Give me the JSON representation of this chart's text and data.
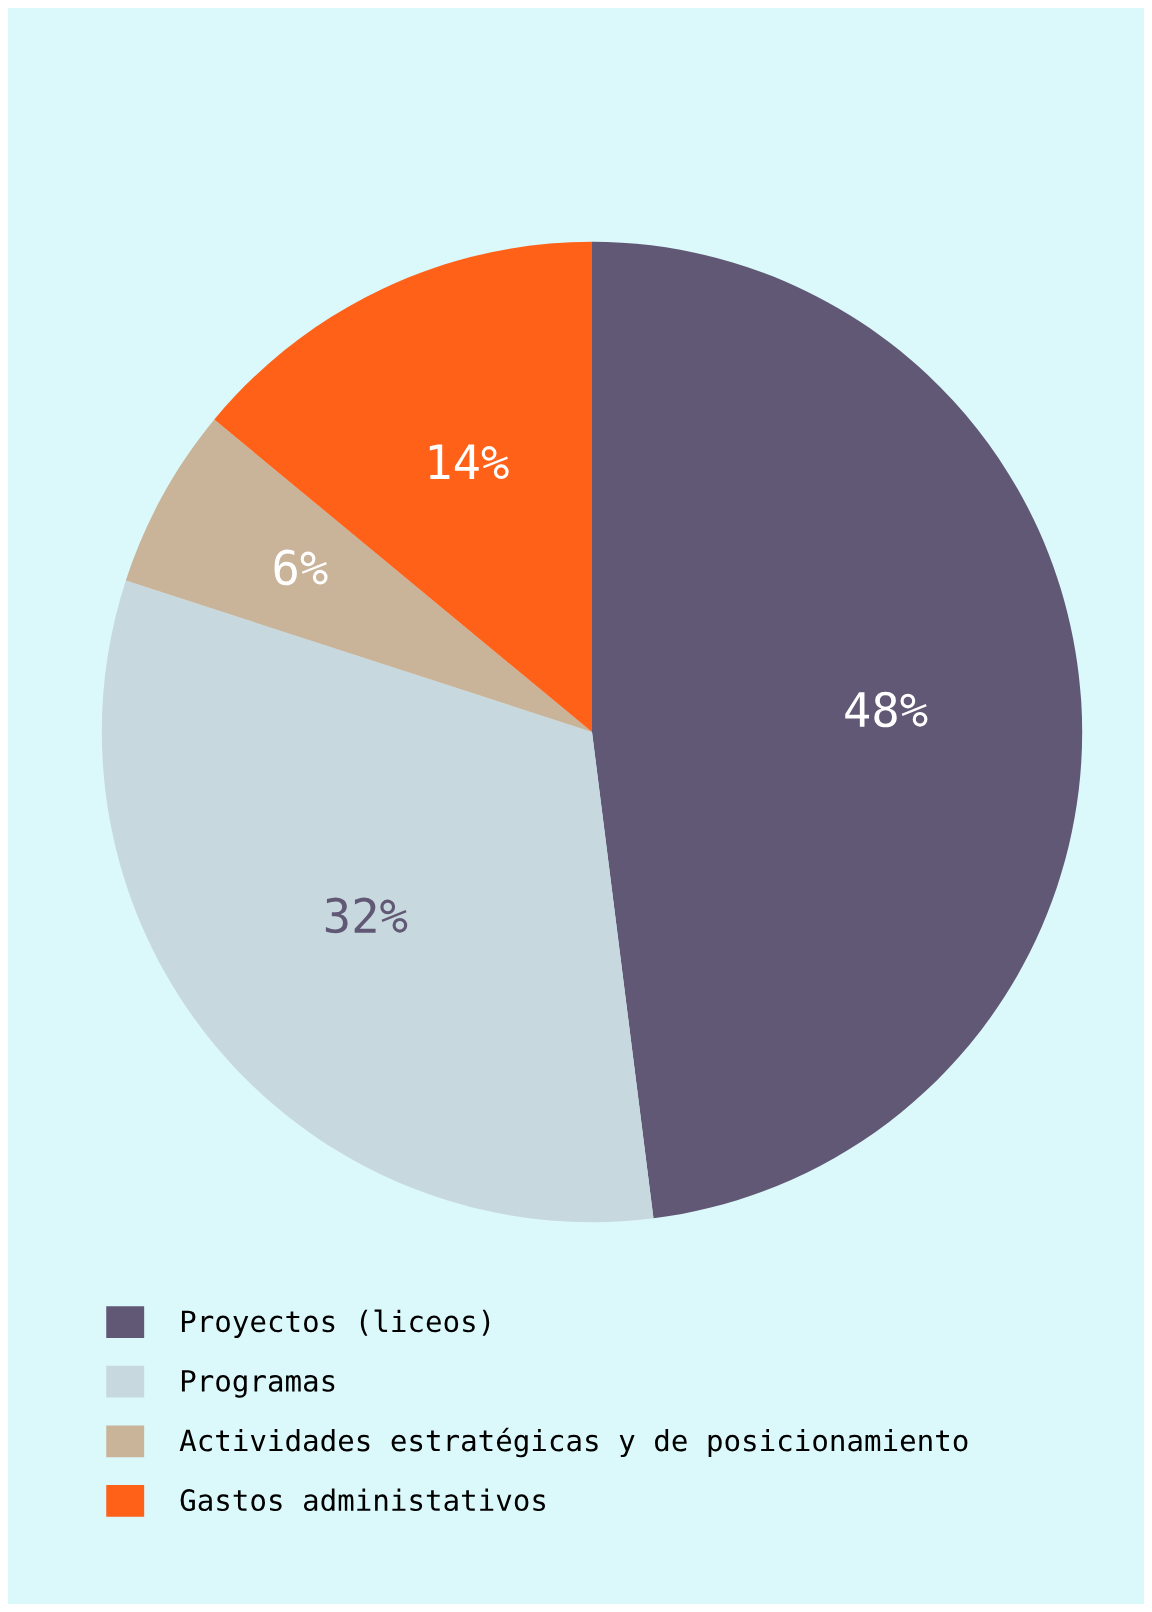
{
  "chart_data": {
    "type": "pie",
    "categories": [
      "Proyectos (liceos)",
      "Programas",
      "Actividades estratégicas y de posicionamiento",
      "Gastos administativos"
    ],
    "values": [
      48,
      32,
      6,
      14
    ],
    "colors": [
      "#605874",
      "#c8d8df",
      "#c9b49a",
      "#ff6119"
    ],
    "value_labels": [
      "48%",
      "32%",
      "6%",
      "14%"
    ],
    "legend": "bottom"
  }
}
